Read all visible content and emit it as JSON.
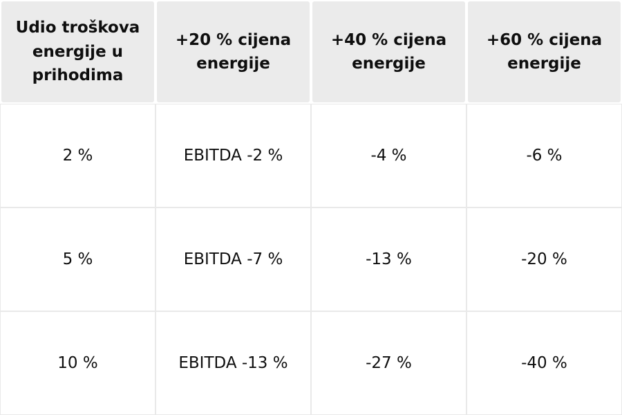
{
  "chart_data": {
    "type": "table",
    "columns": [
      "Udio troškova energije u prihodima",
      "+20 % cijena energije",
      "+40 % cijena energije",
      "+60 % cijena energije"
    ],
    "rows": [
      [
        "2 %",
        "EBITDA -2 %",
        "-4 %",
        "-6 %"
      ],
      [
        "5 %",
        "EBITDA -7 %",
        "-13 %",
        "-20 %"
      ],
      [
        "10 %",
        "EBITDA -13 %",
        "-27 %",
        "-40 %"
      ]
    ]
  },
  "colors": {
    "header_bg": "#ebebeb",
    "body_border": "#e9e9e9",
    "text": "#0e0e0e",
    "page_bg": "#ffffff"
  }
}
